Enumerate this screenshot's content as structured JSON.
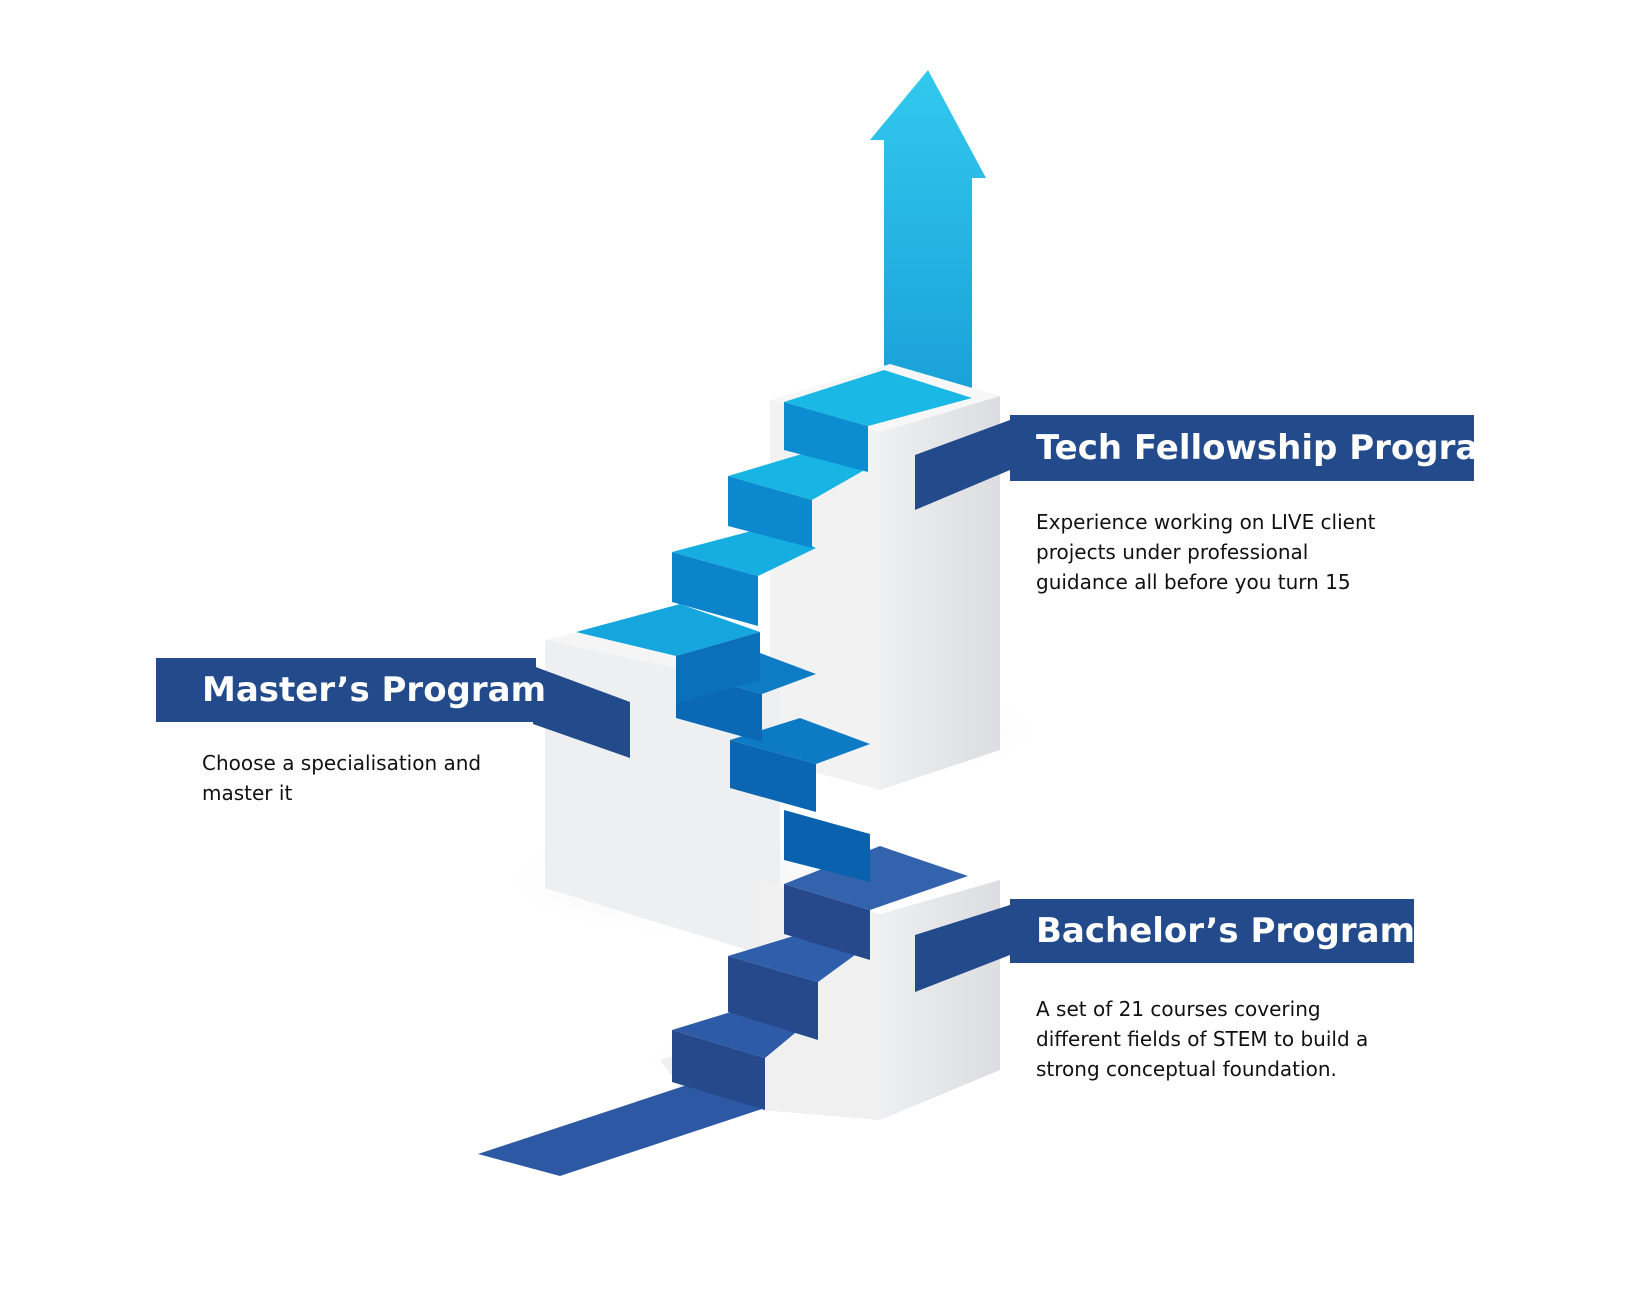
{
  "stages": {
    "tech": {
      "title": "Tech Fellowship Program",
      "lines": [
        "Experience working on LIVE client",
        "projects under professional",
        "guidance all before you turn 15"
      ]
    },
    "masters": {
      "title": "Master’s Program",
      "lines": [
        "Choose a specialisation and",
        "master it"
      ]
    },
    "bachelors": {
      "title": "Bachelor’s Program",
      "lines": [
        "A set of 21 courses covering",
        "different fields of STEM to build a",
        "strong conceptual foundation."
      ]
    }
  },
  "colors": {
    "banner": "#234b8c",
    "step_dark": "#2c5aa6",
    "step_mid": "#0b74c0",
    "step_light": "#17a8df",
    "arrow": "#2fc6ec",
    "block": "#e7e8ea"
  }
}
